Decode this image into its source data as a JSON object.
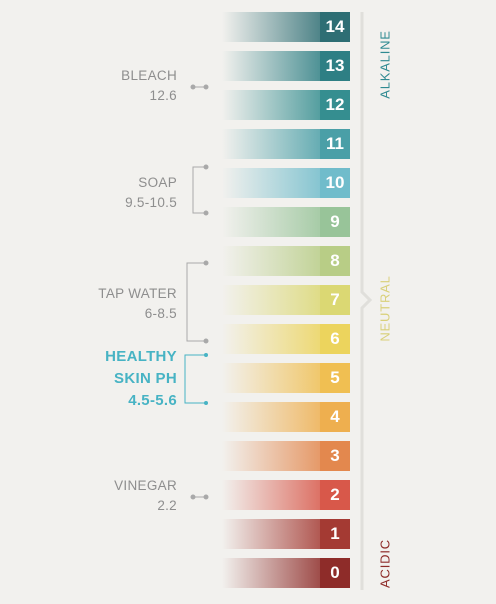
{
  "scale": {
    "levels": [
      {
        "value": "14",
        "color": "#2e6e74"
      },
      {
        "value": "13",
        "color": "#2e7f84"
      },
      {
        "value": "12",
        "color": "#358e90"
      },
      {
        "value": "11",
        "color": "#4a9fa7"
      },
      {
        "value": "10",
        "color": "#70bccb"
      },
      {
        "value": "9",
        "color": "#98c499"
      },
      {
        "value": "8",
        "color": "#b8cd86"
      },
      {
        "value": "7",
        "color": "#dbd873"
      },
      {
        "value": "6",
        "color": "#ecd45d"
      },
      {
        "value": "5",
        "color": "#f0bf52"
      },
      {
        "value": "4",
        "color": "#eeaf4f"
      },
      {
        "value": "3",
        "color": "#e3884e"
      },
      {
        "value": "2",
        "color": "#d8584a"
      },
      {
        "value": "1",
        "color": "#a43a33"
      },
      {
        "value": "0",
        "color": "#8e2c29"
      }
    ]
  },
  "annotations": {
    "bleach": {
      "name": "BLEACH",
      "range": "12.6"
    },
    "soap": {
      "name": "SOAP",
      "range": "9.5-10.5"
    },
    "tap_water": {
      "name": "TAP WATER",
      "range": "6-8.5"
    },
    "healthy_skin": {
      "line1": "HEALTHY",
      "line2": "SKIN PH",
      "range": "4.5-5.6"
    },
    "vinegar": {
      "name": "VINEGAR",
      "range": "2.2"
    }
  },
  "side_labels": {
    "alkaline": {
      "text": "ALKALINE",
      "color": "#2f8a91"
    },
    "neutral": {
      "text": "NEUTRAL",
      "color": "#d9d07a"
    },
    "acidic": {
      "text": "ACIDIC",
      "color": "#8e2c29"
    }
  }
}
